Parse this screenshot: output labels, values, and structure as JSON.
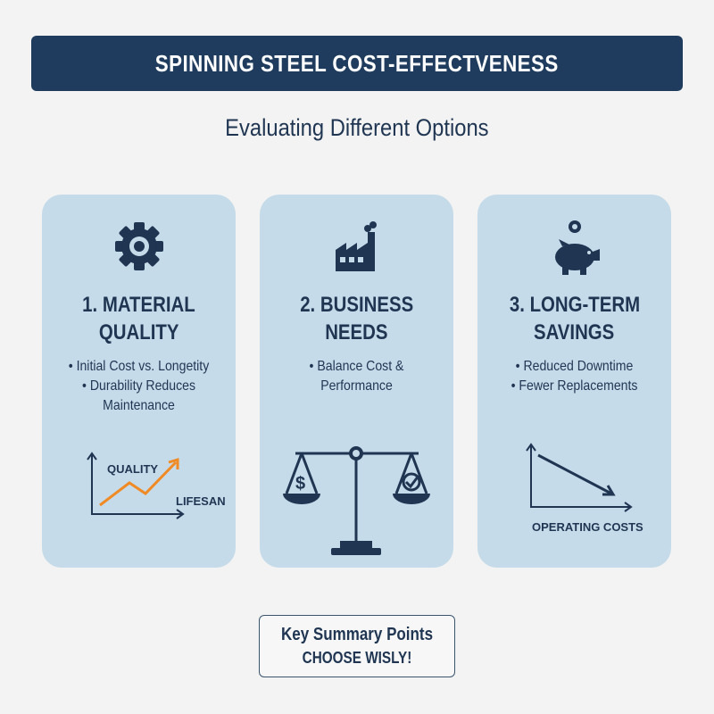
{
  "header": {
    "title": "SPINNING STEEL COST-EFFECTVENESS",
    "subtitle": "Evaluating Different Options"
  },
  "cards": [
    {
      "title_line1": "1. MATERIAL",
      "title_line2": "QUALITY",
      "bullets": [
        "• Initial Cost vs. Longetity",
        "• Durability Reduces",
        "Maintenance"
      ],
      "icon": "gear-icon",
      "figure": {
        "label_y": "QUALITY",
        "label_x": "LIFESAN"
      }
    },
    {
      "title_line1": "2. BUSINESS",
      "title_line2": "NEEDS",
      "bullets": [
        "• Balance Cost &",
        "Performance"
      ],
      "icon": "factory-icon",
      "figure": {
        "icon": "balance-scale-icon"
      }
    },
    {
      "title_line1": "3. LONG-TERM",
      "title_line2": "SAVINGS",
      "bullets": [
        "• Reduced Downtime",
        "• Fewer Replacements"
      ],
      "icon": "piggy-bank-icon",
      "figure": {
        "label_x": "OPERATING COSTS"
      }
    }
  ],
  "summary": {
    "title": "Key Summary Points",
    "subtitle": "CHOOSE WISLY!"
  },
  "colors": {
    "header": "#1f3c5e",
    "card": "#c6dbe9",
    "text": "#1f3552",
    "accent": "#f08a24"
  }
}
